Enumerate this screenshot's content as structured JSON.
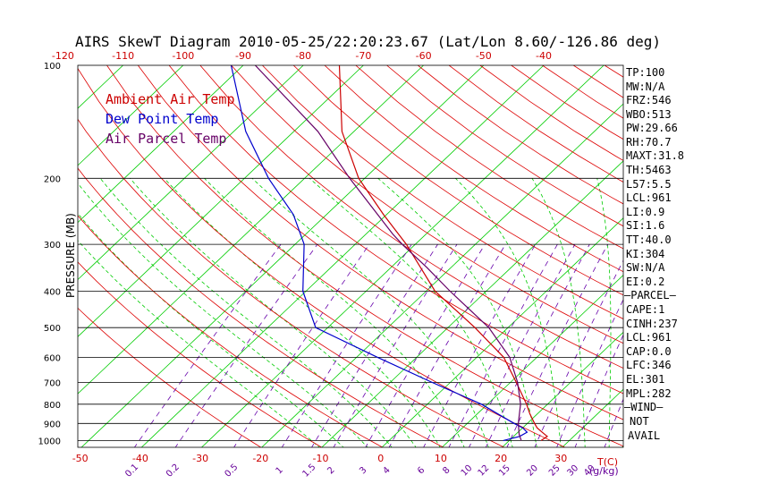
{
  "chart_data": {
    "type": "line",
    "title": "AIRS SkewT Diagram 2010-05-25/22:20:23.67 (Lat/Lon 8.60/-126.86 deg)",
    "ylabel": "PRESSURE (MB)",
    "xlabel": "T(C)",
    "mixing_ratio_unit": "(g/kg)",
    "y_scale": "log",
    "ylim": [
      1050,
      100
    ],
    "xlim": [
      -55,
      45
    ],
    "y_ticks": [
      100,
      200,
      300,
      400,
      500,
      600,
      700,
      800,
      900,
      1000
    ],
    "isobars": [
      200,
      300,
      400,
      500,
      600,
      700,
      800,
      900,
      1000
    ],
    "top_temp_ticks": [
      "-120",
      "-110",
      "-100",
      "-90",
      "-80",
      "-70",
      "-60",
      "-50",
      "-40"
    ],
    "bottom_temp_ticks": [
      "-50",
      "-40",
      "-30",
      "-20",
      "-10",
      "0",
      "10",
      "20",
      "30"
    ],
    "mixing_ratio_ticks": [
      "0.1",
      "0.2",
      "0.5",
      "1",
      "1.5",
      "2",
      "3",
      "4",
      "6",
      "8",
      "10",
      "12",
      "15",
      "20",
      "25",
      "30",
      "40"
    ],
    "legend_position": "top-left",
    "series": [
      {
        "name": "Ambient Air Temp",
        "color": "#cc0000",
        "points": [
          [
            1000,
            25.3
          ],
          [
            975,
            25.6
          ],
          [
            950,
            24.0
          ],
          [
            925,
            22.4
          ],
          [
            900,
            21.2
          ],
          [
            850,
            18.8
          ],
          [
            800,
            16.5
          ],
          [
            700,
            11.0
          ],
          [
            600,
            4.5
          ],
          [
            500,
            -5.5
          ],
          [
            400,
            -18.5
          ],
          [
            300,
            -31.5
          ],
          [
            250,
            -40.5
          ],
          [
            200,
            -51.0
          ],
          [
            150,
            -62.0
          ],
          [
            100,
            -74.0
          ]
        ]
      },
      {
        "name": "Dew Point Temp",
        "color": "#0000cc",
        "points": [
          [
            1000,
            19.0
          ],
          [
            975,
            21.0
          ],
          [
            950,
            21.5
          ],
          [
            925,
            20.0
          ],
          [
            900,
            17.8
          ],
          [
            850,
            13.5
          ],
          [
            800,
            9.0
          ],
          [
            700,
            -3.0
          ],
          [
            600,
            -16.5
          ],
          [
            500,
            -32.0
          ],
          [
            400,
            -40.5
          ],
          [
            300,
            -48.5
          ],
          [
            250,
            -55.5
          ],
          [
            200,
            -66.0
          ],
          [
            150,
            -78.0
          ],
          [
            100,
            -92.0
          ]
        ]
      },
      {
        "name": "Air Parcel Temp",
        "color": "#660066",
        "points": [
          [
            1000,
            22.0
          ],
          [
            961,
            20.5
          ],
          [
            900,
            18.5
          ],
          [
            800,
            15.5
          ],
          [
            700,
            11.2
          ],
          [
            600,
            5.5
          ],
          [
            500,
            -3.2
          ],
          [
            400,
            -16.0
          ],
          [
            346,
            -24.0
          ],
          [
            301,
            -32.0
          ],
          [
            282,
            -35.5
          ],
          [
            200,
            -52.5
          ],
          [
            150,
            -66.0
          ],
          [
            100,
            -88.0
          ]
        ]
      }
    ]
  },
  "indices": {
    "tp": "TP:100",
    "mw": "MW:N/A",
    "frz": "FRZ:546",
    "wbo": "WBO:513",
    "pw": "PW:29.66",
    "rh": "RH:70.7",
    "maxt": "MAXT:31.8",
    "th": "TH:5463",
    "l57": "L57:5.5",
    "lcl": "LCL:961",
    "li": "LI:0.9",
    "si": "SI:1.6",
    "tt": "TT:40.0",
    "ki": "KI:304",
    "sw": "SW:N/A",
    "ei": "EI:0.2",
    "parcel_header": "—PARCEL—",
    "cape": "CAPE:1",
    "cinh": "CINH:237",
    "parcel_lcl": "LCL:961",
    "cap": "CAP:0.0",
    "lfc": "LFC:346",
    "el": "EL:301",
    "mpl": "MPL:282",
    "wind_header": "—WIND—",
    "wind_not": "NOT",
    "wind_avail": "AVAIL"
  },
  "colors": {
    "isotherm": "#00cc00",
    "dry_adiabat": "#dd0000",
    "moist_adiabat": "#00cc00",
    "mixing_ratio": "#6600aa",
    "isobar": "#000000",
    "temp_ticks": "#cc0000",
    "mixing_ratio_ticks": "#660099"
  }
}
